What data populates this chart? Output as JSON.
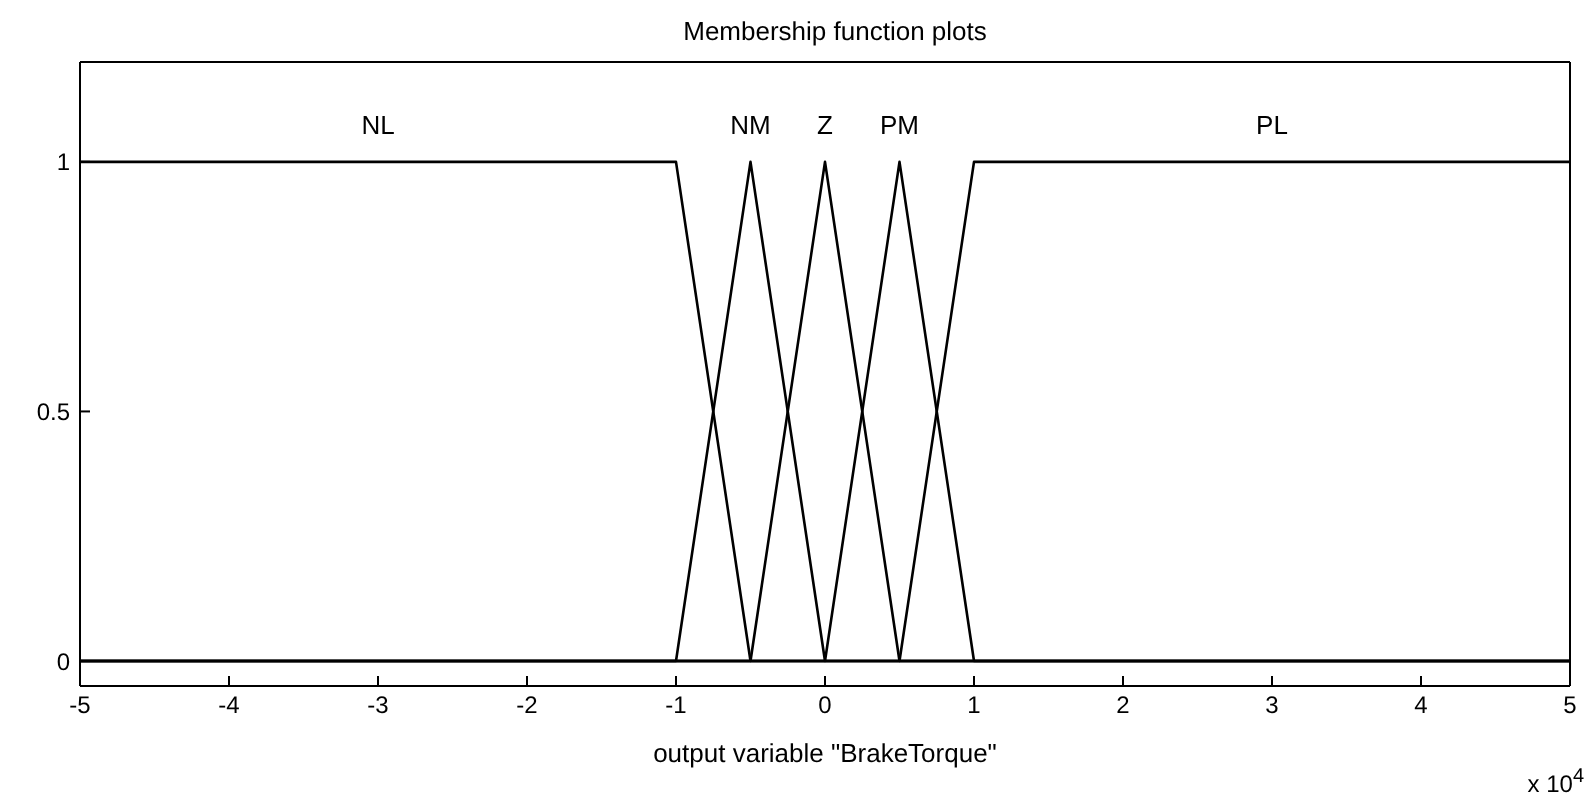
{
  "chart_data": {
    "type": "line",
    "title": "Membership function plots",
    "xlabel": "output variable \"BrakeTorque\"",
    "annotations": [
      "x 10$^{4}$"
    ],
    "xlim": [
      -5,
      5
    ],
    "xticks": [
      -5,
      -4,
      -3,
      -2,
      -1,
      0,
      1,
      2,
      3,
      4,
      5
    ],
    "ylim": [
      -0.05,
      1.2
    ],
    "yticks": [
      0,
      0.5,
      1
    ],
    "legend": false,
    "marker": "none",
    "line_style": "solid",
    "series": [
      {
        "name": "NL",
        "color": "#000000",
        "x": [
          -5,
          -1,
          -0.5,
          5
        ],
        "values": [
          1,
          1,
          0,
          0
        ]
      },
      {
        "name": "NM",
        "color": "#000000",
        "x": [
          -5,
          -1,
          -0.5,
          0,
          5
        ],
        "values": [
          0,
          0,
          1,
          0,
          0
        ]
      },
      {
        "name": "Z",
        "color": "#000000",
        "x": [
          -5,
          -0.5,
          0,
          0.5,
          5
        ],
        "values": [
          0,
          0,
          1,
          0,
          0
        ]
      },
      {
        "name": "PM",
        "color": "#000000",
        "x": [
          -5,
          0,
          0.5,
          1,
          5
        ],
        "values": [
          0,
          0,
          1,
          0,
          0
        ]
      },
      {
        "name": "PL",
        "color": "#000000",
        "x": [
          -5,
          0.5,
          1,
          5
        ],
        "values": [
          0,
          0,
          1,
          1
        ]
      }
    ]
  }
}
